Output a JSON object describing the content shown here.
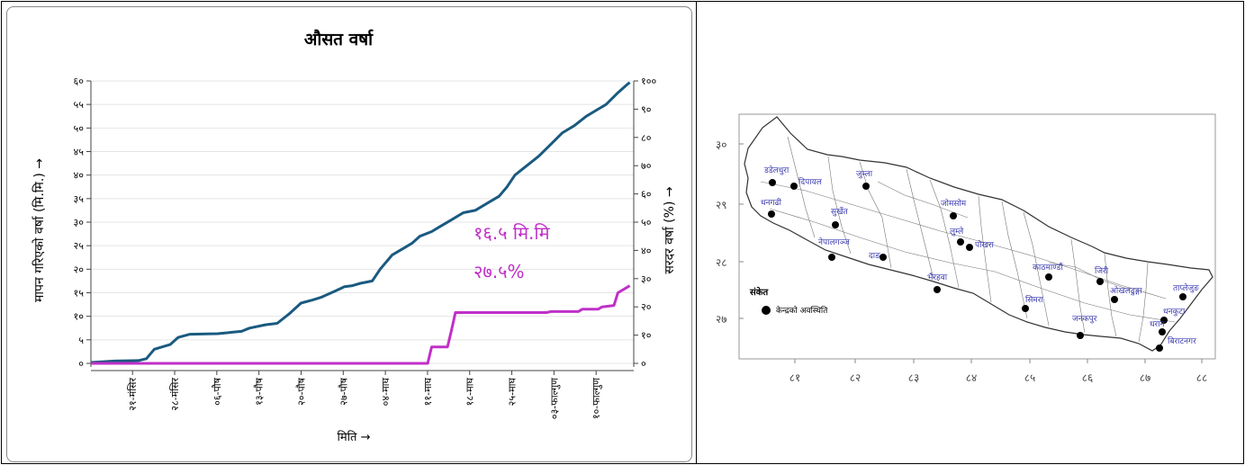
{
  "chart_data": {
    "type": "line",
    "title": "औसत वर्षा",
    "xlabel": "मिति →",
    "ylabel": "मापन गरिएको वर्षा (मि.मि.) →",
    "ylabel_right": "सरदर वर्षा (%) →",
    "ylim": [
      0,
      60
    ],
    "ylim_right": [
      0,
      100
    ],
    "yticks": [
      "०",
      "५",
      "१०",
      "१५",
      "२०",
      "२५",
      "३०",
      "३५",
      "४०",
      "४५",
      "५०",
      "५५",
      "६०"
    ],
    "yticks_right": [
      "०",
      "१०",
      "२०",
      "३०",
      "४०",
      "५०",
      "६०",
      "७०",
      "८०",
      "९०",
      "१००"
    ],
    "x_tick_labels": [
      "२१-मंसिर",
      "२८-मंसिर",
      "०६-पौष",
      "१३-पौष",
      "२०-पौष",
      "२७-पौष",
      "०४-माघ",
      "११-माघ",
      "१८-माघ",
      "२५-माघ",
      "०३-फाल्गुण",
      "१०-फाल्गुण"
    ],
    "annotations": [
      "१६.५ मि.मि",
      "२७.५%"
    ],
    "grid": true,
    "series": [
      {
        "axis": "left",
        "color": "#1a5a80",
        "points": [
          [
            0,
            0.2
          ],
          [
            6,
            0.5
          ],
          [
            12,
            0.6
          ],
          [
            14,
            1.0
          ],
          [
            16,
            3.0
          ],
          [
            20,
            4.0
          ],
          [
            22,
            5.5
          ],
          [
            25,
            6.2
          ],
          [
            32,
            6.3
          ],
          [
            38,
            6.8
          ],
          [
            40,
            7.5
          ],
          [
            44,
            8.2
          ],
          [
            47,
            8.5
          ],
          [
            50,
            10.5
          ],
          [
            53,
            12.8
          ],
          [
            56,
            13.5
          ],
          [
            58,
            14.0
          ],
          [
            62,
            15.5
          ],
          [
            64,
            16.3
          ],
          [
            66,
            16.5
          ],
          [
            68,
            17.0
          ],
          [
            71,
            17.5
          ],
          [
            73,
            20.0
          ],
          [
            76,
            23.0
          ],
          [
            79,
            24.5
          ],
          [
            81,
            25.5
          ],
          [
            83,
            27.0
          ],
          [
            86,
            28.0
          ],
          [
            88,
            29.0
          ],
          [
            91,
            30.5
          ],
          [
            94,
            32.0
          ],
          [
            97,
            32.5
          ],
          [
            100,
            34.0
          ],
          [
            103,
            35.5
          ],
          [
            105,
            37.5
          ],
          [
            107,
            40.0
          ],
          [
            110,
            42.0
          ],
          [
            113,
            44.0
          ],
          [
            116,
            46.5
          ],
          [
            119,
            49.0
          ],
          [
            122,
            50.5
          ],
          [
            125,
            52.5
          ],
          [
            128,
            54.0
          ],
          [
            130,
            55.0
          ],
          [
            133,
            57.5
          ],
          [
            135,
            59.0
          ],
          [
            136,
            59.7
          ]
        ]
      },
      {
        "axis": "left",
        "color": "#c030c8",
        "points": [
          [
            0,
            0
          ],
          [
            85,
            0
          ],
          [
            86,
            3.5
          ],
          [
            90,
            3.5
          ],
          [
            91,
            7.0
          ],
          [
            92,
            10.8
          ],
          [
            115,
            10.8
          ],
          [
            116,
            11.0
          ],
          [
            123,
            11.0
          ],
          [
            124,
            11.5
          ],
          [
            128,
            11.5
          ],
          [
            129,
            12.0
          ],
          [
            132,
            12.3
          ],
          [
            133,
            15.0
          ],
          [
            135,
            16.0
          ],
          [
            136,
            16.5
          ]
        ]
      }
    ]
  },
  "map": {
    "legend_title": "संकेत",
    "legend_item": "केन्द्रको अवस्थिति",
    "lat_ticks": [
      "३०",
      "२९",
      "२८",
      "२७"
    ],
    "lon_ticks": [
      "८१",
      "८२",
      "८३",
      "८४",
      "८५",
      "८६",
      "८७",
      "८८"
    ],
    "stations": [
      {
        "name": "डडेलधुरा"
      },
      {
        "name": "दिपायल"
      },
      {
        "name": "जुम्ला"
      },
      {
        "name": "धनगढी"
      },
      {
        "name": "सुर्खेत"
      },
      {
        "name": "जोमसोम"
      },
      {
        "name": "लुम्ले"
      },
      {
        "name": "पोखरा"
      },
      {
        "name": "नेपालगञ्ज"
      },
      {
        "name": "दाङ"
      },
      {
        "name": "काठमाण्डौं"
      },
      {
        "name": "जिरी"
      },
      {
        "name": "भैरहवा"
      },
      {
        "name": "ओखलढुङ्गा"
      },
      {
        "name": "ताप्लेजुङ"
      },
      {
        "name": "सिमरा"
      },
      {
        "name": "धनकुटा"
      },
      {
        "name": "जनकपुर"
      },
      {
        "name": "धरान"
      },
      {
        "name": "बिराटनगर"
      }
    ]
  }
}
